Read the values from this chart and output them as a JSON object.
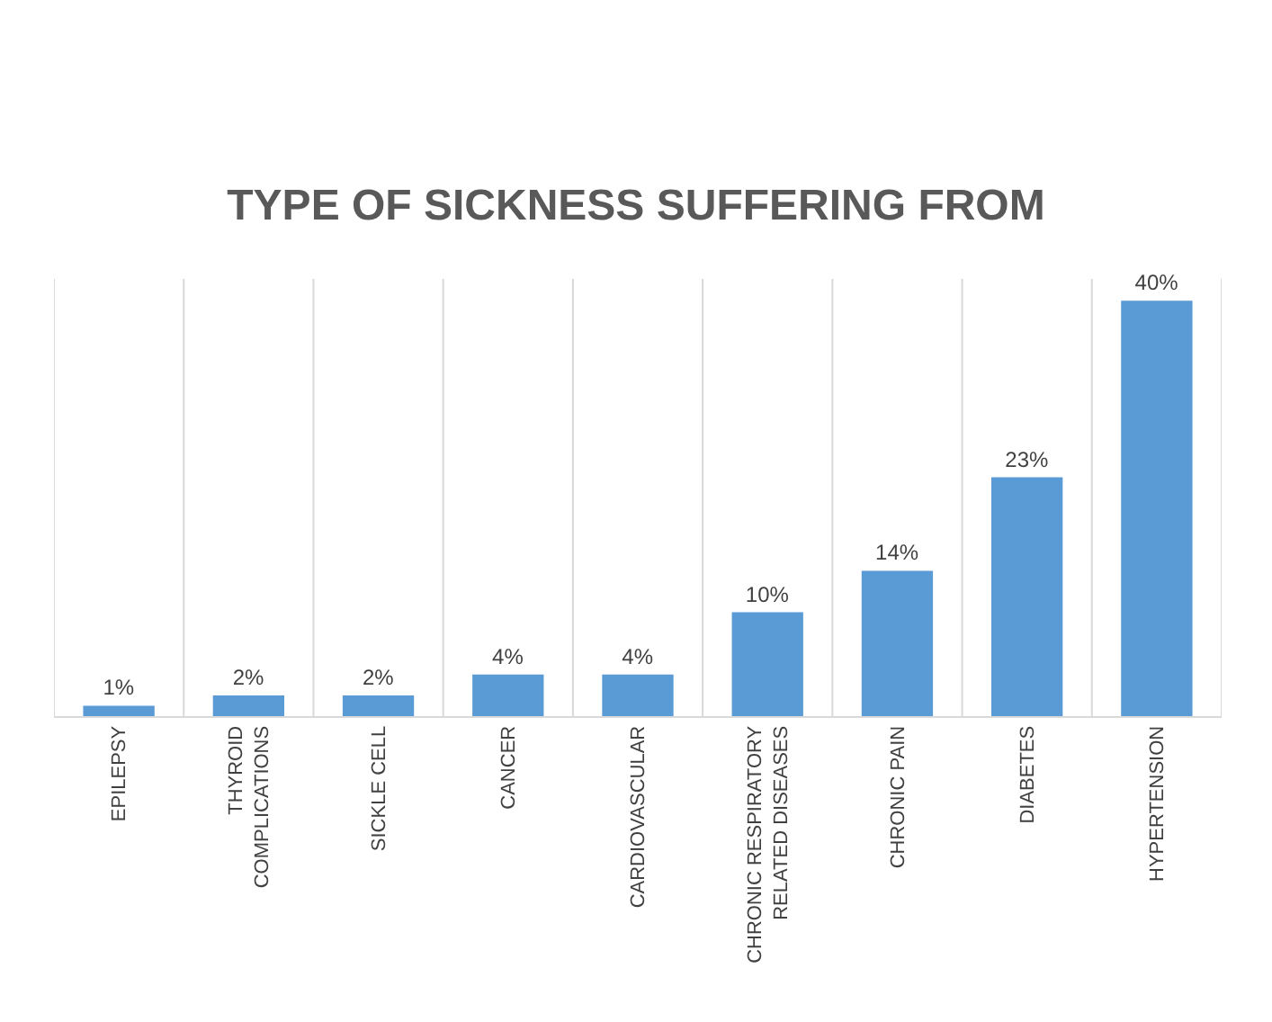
{
  "chart_data": {
    "type": "bar",
    "title": "TYPE OF SICKNESS SUFFERING FROM",
    "categories": [
      "EPILEPSY",
      "THYROID COMPLICATIONS",
      "SICKLE CELL",
      "CANCER",
      "CARDIOVASCULAR",
      "CHRONIC RESPIRATORY RELATED DISEASES",
      "CHRONIC PAIN",
      "DIABETES",
      "HYPERTENSION"
    ],
    "values": [
      1,
      2,
      2,
      4,
      4,
      10,
      14,
      23,
      40
    ],
    "value_labels": [
      "1%",
      "2%",
      "2%",
      "4%",
      "4%",
      "10%",
      "14%",
      "23%",
      "40%"
    ],
    "color": "#5b9bd5",
    "grid": "x",
    "legend": false
  }
}
